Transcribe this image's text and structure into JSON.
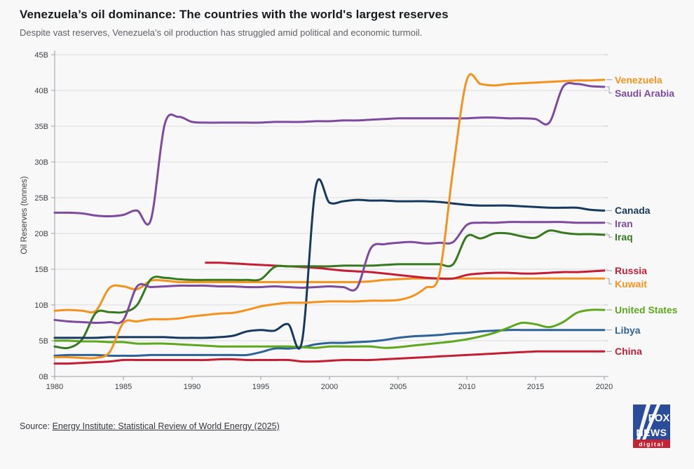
{
  "header": {
    "title": "Venezuela’s oil dominance: The countries with the world's largest reserves",
    "subtitle": "Despite vast reserves, Venezuela’s oil production has struggled amid political and economic turmoil."
  },
  "source": {
    "prefix": "Source: ",
    "link_text": "Energy Institute: Statistical Review of World Energy (2025)"
  },
  "logo": {
    "line1": "FOX",
    "line2": "NEWS",
    "line3": "digital",
    "blue": "#2b4c9b",
    "red": "#c22433"
  },
  "chart_data": {
    "type": "line",
    "title": "Venezuela’s oil dominance: The countries with the world's largest reserves",
    "xlabel": "",
    "ylabel": "Oil Reserves (tonnes)",
    "ylim": [
      0,
      45
    ],
    "grid": "horizontal",
    "legend_position": "right-edge-labels",
    "yticks": [
      "0B",
      "5B",
      "10B",
      "15B",
      "20B",
      "25B",
      "30B",
      "35B",
      "40B",
      "45B"
    ],
    "xticks": [
      1980,
      1985,
      1990,
      1995,
      2000,
      2005,
      2010,
      2015,
      2020
    ],
    "years": [
      1980,
      1981,
      1982,
      1983,
      1984,
      1985,
      1986,
      1987,
      1988,
      1989,
      1990,
      1991,
      1992,
      1993,
      1994,
      1995,
      1996,
      1997,
      1998,
      1999,
      2000,
      2001,
      2002,
      2003,
      2004,
      2005,
      2006,
      2007,
      2008,
      2009,
      2010,
      2011,
      2012,
      2013,
      2014,
      2015,
      2016,
      2017,
      2018,
      2019,
      2020
    ],
    "units": "billion tonnes",
    "series": [
      {
        "name": "Venezuela",
        "color": "#f5921e",
        "values": [
          2.7,
          2.7,
          2.6,
          2.6,
          3.4,
          7.5,
          7.7,
          8.0,
          8.0,
          8.1,
          8.4,
          8.6,
          8.8,
          8.9,
          9.3,
          9.8,
          10.1,
          10.3,
          10.3,
          10.4,
          10.5,
          10.5,
          10.5,
          10.6,
          10.6,
          10.7,
          11.2,
          12.4,
          14.3,
          29.0,
          41.5,
          40.9,
          40.7,
          40.9,
          41.0,
          41.1,
          41.2,
          41.3,
          41.4,
          41.4,
          41.5
        ]
      },
      {
        "name": "Saudi Arabia",
        "color": "#7d4a9e",
        "values": [
          22.9,
          22.9,
          22.8,
          22.5,
          22.4,
          22.6,
          23.2,
          21.9,
          35.2,
          36.3,
          35.6,
          35.5,
          35.5,
          35.5,
          35.5,
          35.5,
          35.6,
          35.6,
          35.6,
          35.7,
          35.7,
          35.8,
          35.8,
          35.9,
          36.0,
          36.1,
          36.1,
          36.1,
          36.1,
          36.1,
          36.1,
          36.2,
          36.2,
          36.1,
          36.1,
          36.0,
          35.5,
          40.5,
          40.9,
          40.6,
          40.5
        ]
      },
      {
        "name": "Canada",
        "color": "#17395e",
        "values": [
          5.4,
          5.4,
          5.4,
          5.4,
          5.5,
          5.5,
          5.5,
          5.5,
          5.5,
          5.4,
          5.4,
          5.4,
          5.5,
          5.7,
          6.3,
          6.5,
          6.4,
          7.3,
          4.9,
          26.5,
          24.3,
          24.5,
          24.7,
          24.6,
          24.6,
          24.5,
          24.5,
          24.5,
          24.4,
          24.2,
          24.0,
          23.9,
          23.9,
          23.9,
          23.8,
          23.7,
          23.6,
          23.6,
          23.6,
          23.3,
          23.2
        ]
      },
      {
        "name": "Iran",
        "color": "#7d4a9e",
        "values": [
          7.9,
          7.7,
          7.6,
          7.5,
          7.6,
          7.9,
          12.6,
          12.5,
          12.6,
          12.7,
          12.7,
          12.7,
          12.6,
          12.6,
          12.5,
          12.5,
          12.6,
          12.5,
          12.4,
          12.5,
          12.6,
          12.5,
          12.4,
          17.9,
          18.5,
          18.7,
          18.8,
          18.6,
          18.7,
          18.8,
          21.2,
          21.5,
          21.5,
          21.6,
          21.6,
          21.6,
          21.6,
          21.6,
          21.5,
          21.5,
          21.5
        ]
      },
      {
        "name": "Iraq",
        "color": "#36791f",
        "values": [
          4.2,
          4.0,
          5.2,
          8.9,
          9.0,
          9.0,
          10.0,
          13.6,
          13.8,
          13.6,
          13.5,
          13.5,
          13.5,
          13.5,
          13.5,
          13.6,
          15.3,
          15.4,
          15.4,
          15.4,
          15.4,
          15.5,
          15.5,
          15.5,
          15.6,
          15.7,
          15.7,
          15.7,
          15.7,
          15.7,
          19.6,
          19.3,
          20.0,
          20.0,
          19.6,
          19.4,
          20.4,
          20.1,
          19.9,
          19.9,
          19.8
        ]
      },
      {
        "name": "Russia",
        "color": "#c41e34",
        "values": [
          null,
          null,
          null,
          null,
          null,
          null,
          null,
          null,
          null,
          null,
          null,
          15.9,
          15.9,
          15.8,
          15.7,
          15.6,
          15.5,
          15.4,
          15.3,
          15.2,
          15.0,
          14.8,
          14.7,
          14.6,
          14.4,
          14.2,
          14.0,
          13.8,
          13.7,
          13.7,
          14.2,
          14.4,
          14.5,
          14.5,
          14.4,
          14.4,
          14.5,
          14.6,
          14.6,
          14.7,
          14.8
        ]
      },
      {
        "name": "Kuwait",
        "color": "#f5921e",
        "values": [
          9.2,
          9.3,
          9.2,
          9.2,
          12.4,
          12.6,
          12.2,
          13.4,
          13.4,
          13.2,
          13.2,
          13.2,
          13.2,
          13.2,
          13.2,
          13.2,
          13.2,
          13.2,
          13.2,
          13.2,
          13.2,
          13.2,
          13.2,
          13.3,
          13.5,
          13.6,
          13.7,
          13.7,
          13.7,
          13.7,
          13.7,
          13.7,
          13.7,
          13.7,
          13.7,
          13.7,
          13.7,
          13.7,
          13.7,
          13.7,
          13.7
        ]
      },
      {
        "name": "United States",
        "color": "#5ea71e",
        "values": [
          5.0,
          5.0,
          4.9,
          4.9,
          4.8,
          4.8,
          4.6,
          4.6,
          4.6,
          4.5,
          4.4,
          4.3,
          4.2,
          4.2,
          4.2,
          4.2,
          4.2,
          4.2,
          4.1,
          4.0,
          4.2,
          4.2,
          4.2,
          4.2,
          4.0,
          4.1,
          4.3,
          4.5,
          4.7,
          4.9,
          5.2,
          5.6,
          6.1,
          6.8,
          7.5,
          7.3,
          6.9,
          7.6,
          8.9,
          9.3,
          9.3
        ]
      },
      {
        "name": "Libya",
        "color": "#2f6296",
        "values": [
          2.9,
          3.0,
          3.0,
          3.0,
          2.9,
          2.9,
          2.9,
          3.0,
          3.0,
          3.0,
          3.0,
          3.0,
          3.0,
          3.0,
          3.0,
          3.4,
          3.9,
          3.9,
          4.1,
          4.5,
          4.7,
          4.7,
          4.8,
          4.9,
          5.1,
          5.4,
          5.6,
          5.7,
          5.8,
          6.0,
          6.1,
          6.3,
          6.4,
          6.5,
          6.5,
          6.5,
          6.5,
          6.5,
          6.5,
          6.5,
          6.5
        ]
      },
      {
        "name": "China",
        "color": "#c41e34",
        "values": [
          1.8,
          1.8,
          1.9,
          2.0,
          2.1,
          2.3,
          2.3,
          2.3,
          2.3,
          2.3,
          2.3,
          2.3,
          2.4,
          2.4,
          2.3,
          2.3,
          2.3,
          2.3,
          2.1,
          2.1,
          2.2,
          2.3,
          2.3,
          2.3,
          2.4,
          2.5,
          2.6,
          2.7,
          2.8,
          2.9,
          3.0,
          3.1,
          3.2,
          3.3,
          3.4,
          3.5,
          3.5,
          3.5,
          3.5,
          3.5,
          3.5
        ]
      }
    ]
  }
}
